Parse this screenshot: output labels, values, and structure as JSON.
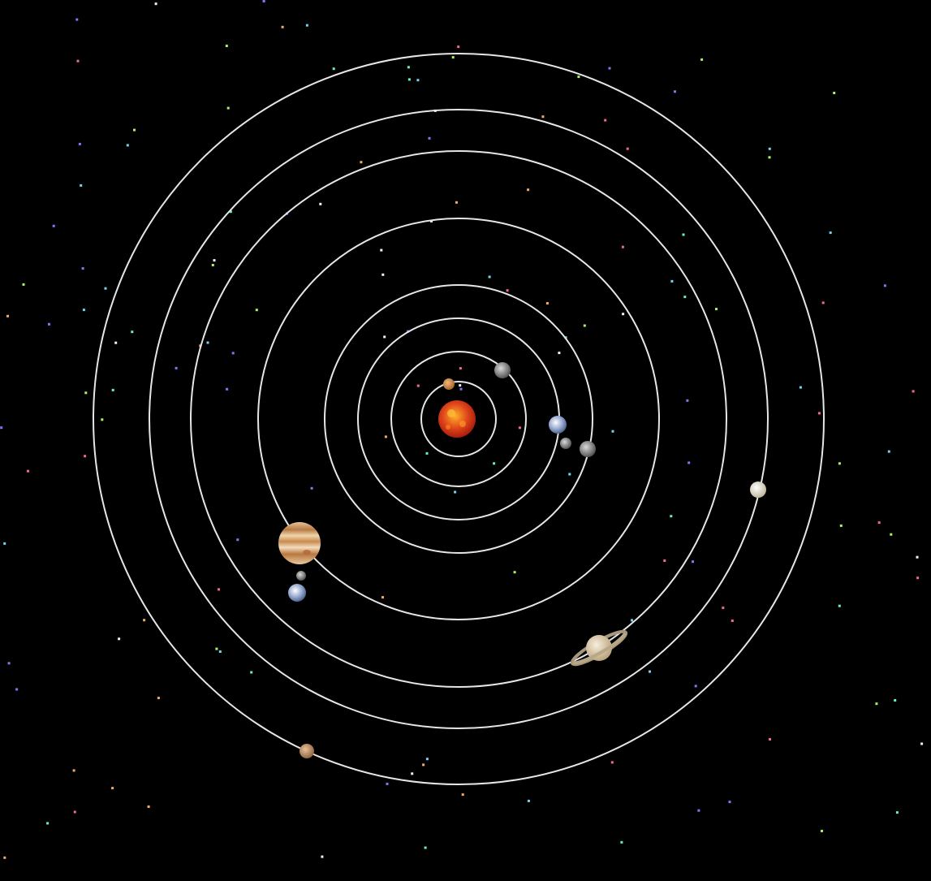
{
  "scene": {
    "background": "#000000",
    "orbit_color": "#e6e6e6",
    "bodies": [
      {
        "name": "sun",
        "icon": "sun-icon",
        "color": "#d8381a"
      },
      {
        "name": "mercury",
        "icon": "mercury-icon",
        "color": "#c98a4b"
      },
      {
        "name": "venus",
        "icon": "venus-icon",
        "color": "#9a9a9a"
      },
      {
        "name": "earth",
        "icon": "earth-icon",
        "color": "#8fa3c9"
      },
      {
        "name": "moon",
        "icon": "moon-icon",
        "color": "#8a8a8a"
      },
      {
        "name": "mars",
        "icon": "mars-icon",
        "color": "#9c9c9c"
      },
      {
        "name": "jupiter",
        "icon": "jupiter-icon",
        "color": "#c99a5c"
      },
      {
        "name": "saturn",
        "icon": "saturn-icon",
        "color": "#d8c9a8"
      },
      {
        "name": "uranus",
        "icon": "uranus-icon",
        "color": "#e8e3d0"
      },
      {
        "name": "neptune",
        "icon": "neptune-icon",
        "color": "#c39a6a"
      }
    ],
    "star_colors": [
      "#7fdbff",
      "#ff6f91",
      "#b5ff6f",
      "#8f7bff",
      "#ffb36f",
      "#ffffff",
      "#6fffc2"
    ]
  }
}
